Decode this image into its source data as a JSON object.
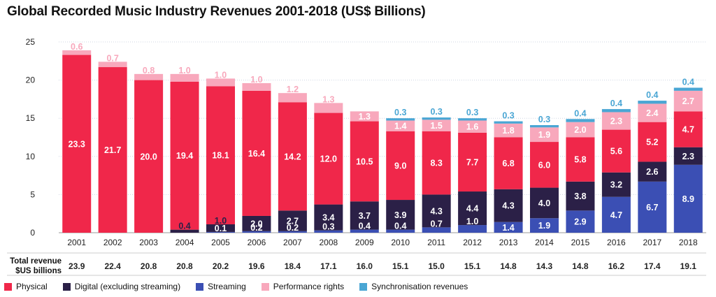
{
  "title": "Global Recorded Music Industry Revenues 2001-2018 (US$ Billions)",
  "total_label_line1": "Total revenue",
  "total_label_line2": "$US billions",
  "chart_data": {
    "type": "bar",
    "stacked": true,
    "title": "Global Recorded Music Industry Revenues 2001-2018 (US$ Billions)",
    "ylim": [
      0,
      25
    ],
    "yticks": [
      0,
      5,
      10,
      15,
      20,
      25
    ],
    "categories": [
      "2001",
      "2002",
      "2003",
      "2004",
      "2005",
      "2006",
      "2007",
      "2008",
      "2009",
      "2010",
      "2011",
      "2012",
      "2013",
      "2014",
      "2015",
      "2016",
      "2017",
      "2018"
    ],
    "series": [
      {
        "name": "Physical",
        "color": "#f0274a",
        "values": [
          23.3,
          21.7,
          20.0,
          19.4,
          18.1,
          16.4,
          14.2,
          12.0,
          10.5,
          9.0,
          8.3,
          7.7,
          6.8,
          6.0,
          5.8,
          5.6,
          5.2,
          4.7
        ],
        "labels": [
          "23.3",
          "21.7",
          "20.0",
          "19.4",
          "18.1",
          "16.4",
          "14.2",
          "12.0",
          "10.5",
          "9.0",
          "8.3",
          "7.7",
          "6.8",
          "6.0",
          "5.8",
          "5.6",
          "5.2",
          "4.7"
        ]
      },
      {
        "name": "Digital (excluding streaming)",
        "color": "#2b2047",
        "values": [
          0,
          0,
          0,
          0.4,
          1.0,
          2.0,
          2.7,
          3.4,
          3.7,
          3.9,
          4.3,
          4.4,
          4.3,
          4.0,
          3.8,
          3.2,
          2.6,
          2.3
        ],
        "labels": [
          "",
          "",
          "",
          "0.4",
          "1.0",
          "2.0",
          "2.7",
          "3.4",
          "3.7",
          "3.9",
          "4.3",
          "4.4",
          "4.3",
          "4.0",
          "3.8",
          "3.2",
          "2.6",
          "2.3"
        ]
      },
      {
        "name": "Streaming",
        "color": "#3b4fb4",
        "values": [
          0,
          0,
          0,
          0,
          0.1,
          0.2,
          0.2,
          0.3,
          0.4,
          0.4,
          0.7,
          1.0,
          1.4,
          1.9,
          2.9,
          4.7,
          6.7,
          8.9
        ],
        "labels": [
          "",
          "",
          "",
          "",
          "0.1",
          "0.2",
          "0.2",
          "0.3",
          "0.4",
          "0.4",
          "0.7",
          "1.0",
          "1.4",
          "1.9",
          "2.9",
          "4.7",
          "6.7",
          "8.9"
        ]
      },
      {
        "name": "Performance rights",
        "color": "#f8a8bc",
        "values": [
          0.6,
          0.7,
          0.8,
          1.0,
          1.0,
          1.0,
          1.2,
          1.3,
          1.3,
          1.4,
          1.5,
          1.6,
          1.8,
          1.9,
          2.0,
          2.3,
          2.4,
          2.7
        ],
        "labels": [
          "0.6",
          "0.7",
          "0.8",
          "1.0",
          "1.0",
          "1.0",
          "1.2",
          "1.3",
          "1.3",
          "1.4",
          "1.5",
          "1.6",
          "1.8",
          "1.9",
          "2.0",
          "2.3",
          "2.4",
          "2.7"
        ]
      },
      {
        "name": "Synchronisation revenues",
        "color": "#4aa6d4",
        "values": [
          0,
          0,
          0,
          0,
          0,
          0,
          0,
          0,
          0,
          0.3,
          0.3,
          0.3,
          0.3,
          0.3,
          0.4,
          0.4,
          0.4,
          0.4
        ],
        "labels": [
          "",
          "",
          "",
          "",
          "",
          "",
          "",
          "",
          "",
          "0.3",
          "0.3",
          "0.3",
          "0.3",
          "0.3",
          "0.4",
          "0.4",
          "0.4",
          "0.4"
        ]
      }
    ],
    "totals": [
      "23.9",
      "22.4",
      "20.8",
      "20.8",
      "20.2",
      "19.6",
      "18.4",
      "17.1",
      "16.0",
      "15.1",
      "15.0",
      "15.1",
      "14.8",
      "14.3",
      "14.8",
      "16.2",
      "17.4",
      "19.1"
    ],
    "legend_position": "bottom"
  },
  "legend": [
    {
      "label": "Physical",
      "color": "#f0274a"
    },
    {
      "label": "Digital (excluding streaming)",
      "color": "#2b2047"
    },
    {
      "label": "Streaming",
      "color": "#3b4fb4"
    },
    {
      "label": "Performance rights",
      "color": "#f8a8bc"
    },
    {
      "label": "Synchronisation revenues",
      "color": "#4aa6d4"
    }
  ]
}
